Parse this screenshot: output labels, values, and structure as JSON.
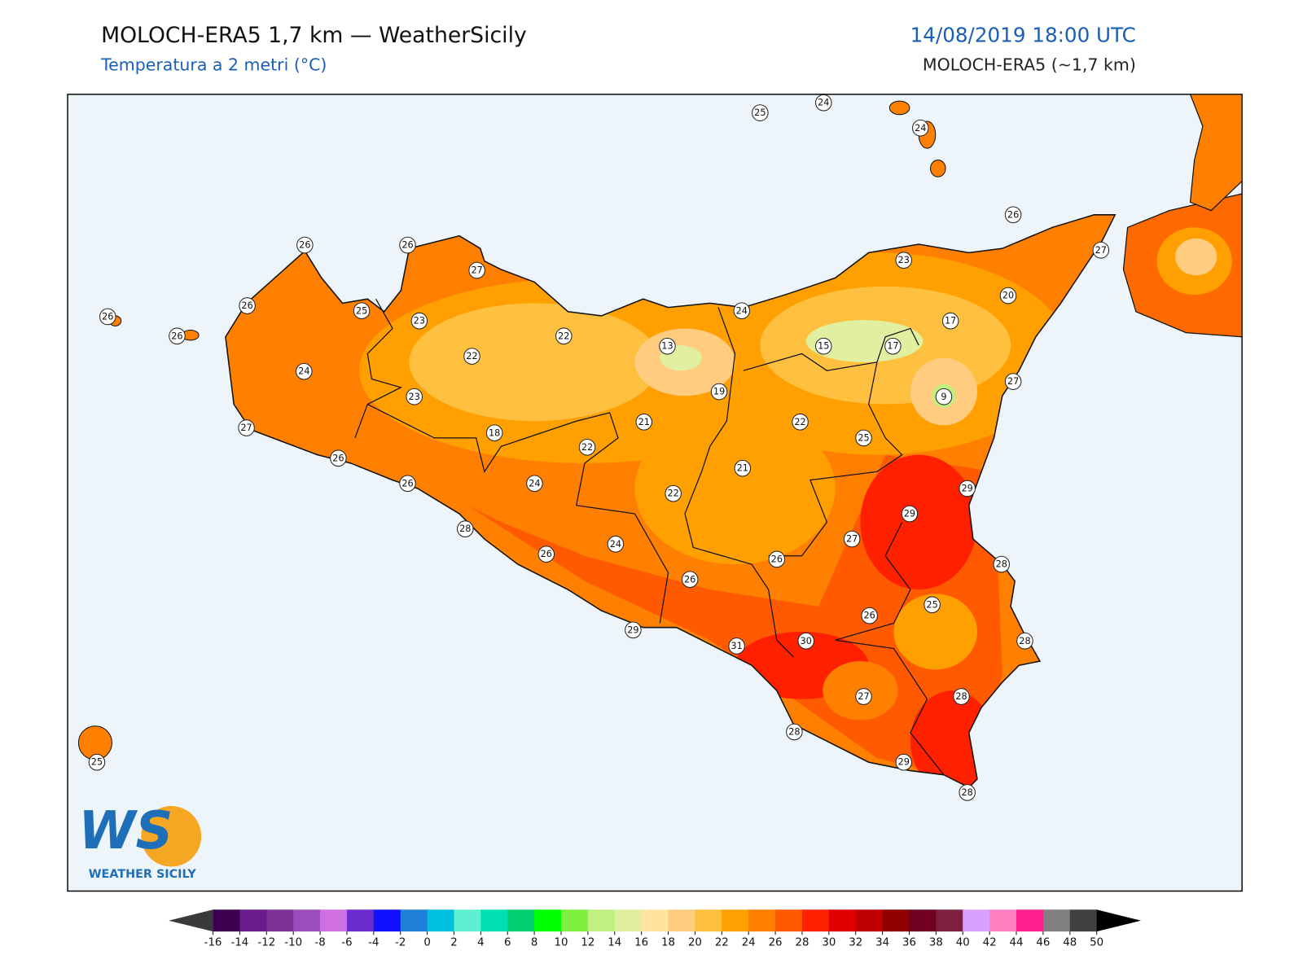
{
  "header": {
    "title": "MOLOCH-ERA5 1,7 km — WeatherSicily",
    "subtitle": "Temperatura a 2 metri (°C)",
    "datetime": "14/08/2019 18:00 UTC",
    "model": "MOLOCH-ERA5 (~1,7 km)"
  },
  "map": {
    "stations": [
      25,
      24,
      24,
      26,
      27,
      26,
      26,
      27,
      26,
      25,
      23,
      26,
      26,
      22,
      24,
      23,
      20,
      17,
      13,
      15,
      17,
      24,
      22,
      19,
      9,
      27,
      23,
      27,
      18,
      21,
      22,
      25,
      22,
      26,
      21,
      26,
      24,
      22,
      29,
      29,
      28,
      27,
      24,
      26,
      26,
      28,
      26,
      25,
      26,
      29,
      30,
      31,
      28,
      27,
      28,
      28,
      29,
      28,
      25
    ]
  },
  "logo": {
    "letters": "WS",
    "name": "WEATHER SICILY"
  },
  "colorbar": {
    "ticks": [
      -16,
      -14,
      -12,
      -10,
      -8,
      -6,
      -4,
      -2,
      0,
      2,
      4,
      6,
      8,
      10,
      12,
      14,
      16,
      18,
      20,
      22,
      24,
      26,
      28,
      30,
      32,
      34,
      36,
      38,
      40,
      42,
      44,
      46,
      48,
      50
    ],
    "colors": [
      "#3d0050",
      "#6a1a8a",
      "#7b3294",
      "#9b4dbb",
      "#d070e0",
      "#6a2ccc",
      "#1010ff",
      "#1e7fd8",
      "#00c0e0",
      "#5ef0d0",
      "#00e0b0",
      "#00d070",
      "#00ff00",
      "#80f040",
      "#c0f080",
      "#e0f0a0",
      "#ffe4a0",
      "#ffcc80",
      "#ffc040",
      "#ffa000",
      "#ff8000",
      "#ff5a00",
      "#ff2000",
      "#e00000",
      "#c00000",
      "#900000",
      "#700020",
      "#802040",
      "#d8a0ff",
      "#ff80c0",
      "#ff2090",
      "#808080",
      "#404040"
    ],
    "under_color": "#3a3a3a",
    "over_color": "#000000"
  }
}
